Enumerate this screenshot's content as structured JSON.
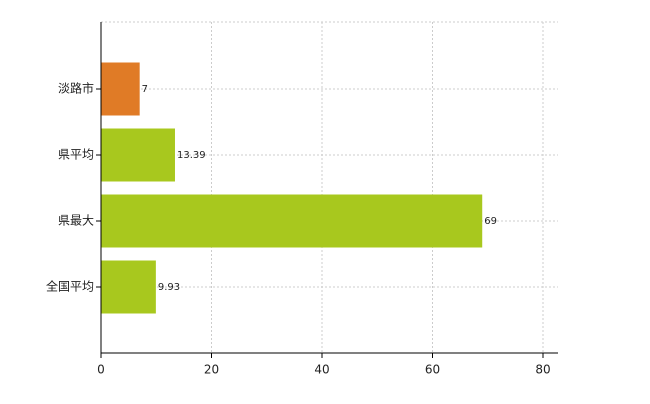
{
  "chart_data": {
    "type": "hbar",
    "categories": [
      "淡路市",
      "県平均",
      "県最大",
      "全国平均"
    ],
    "values": [
      7,
      13.39,
      69,
      9.93
    ],
    "colors": [
      "#e07b26",
      "#a8c81e",
      "#a8c81e",
      "#a8c81e"
    ],
    "xlim": [
      0,
      80
    ],
    "xticks": [
      0,
      20,
      40,
      60,
      80
    ],
    "grid": true
  }
}
